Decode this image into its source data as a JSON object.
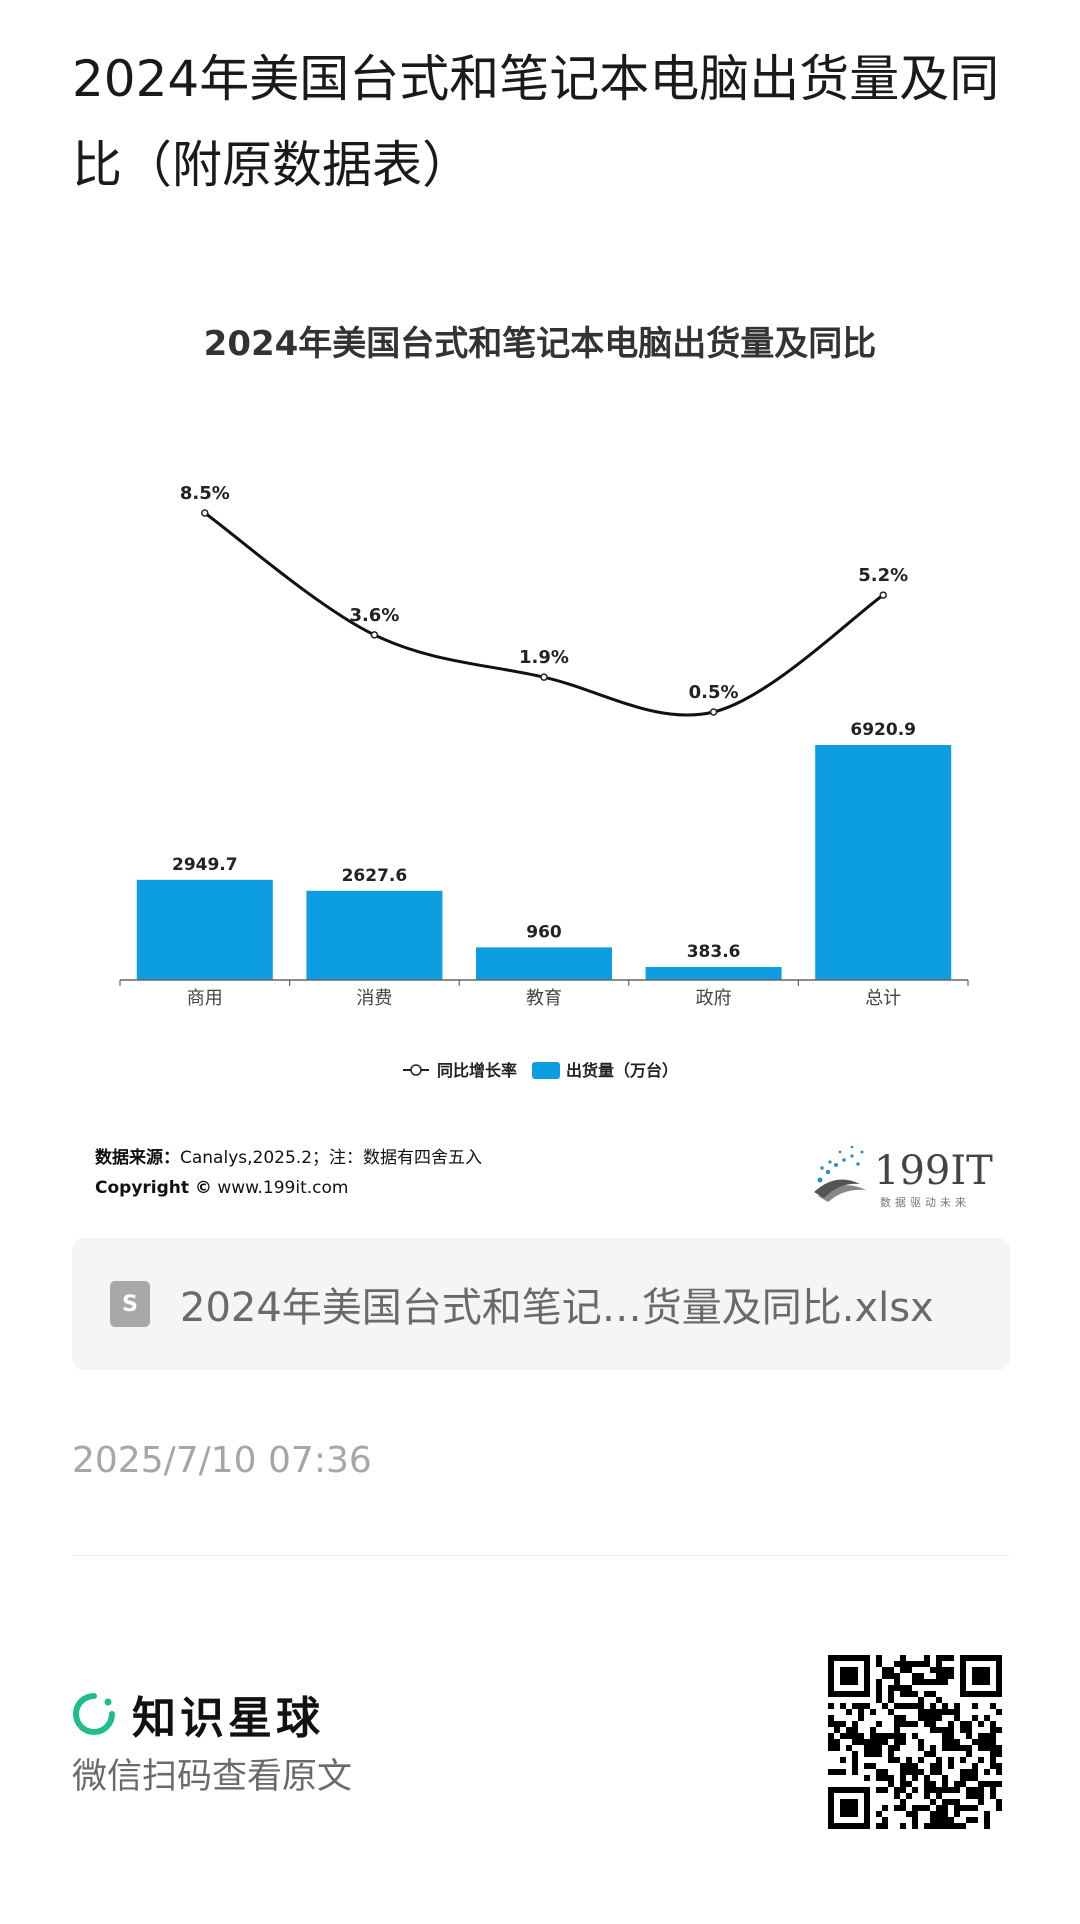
{
  "article": {
    "title": "2024年美国台式和笔记本电脑出货量及同比（附原数据表）"
  },
  "chart_data": {
    "type": "bar",
    "title": "2024年美国台式和笔记本电脑出货量及同比",
    "categories": [
      "商用",
      "消费",
      "教育",
      "政府",
      "总计"
    ],
    "series": [
      {
        "name": "出货量（万台）",
        "type": "bar",
        "values": [
          2949.7,
          2627.6,
          960,
          383.6,
          6920.9
        ],
        "labels": [
          "2949.7",
          "2627.6",
          "960",
          "383.6",
          "6920.9"
        ],
        "color": "#0c9ee0"
      },
      {
        "name": "同比增长率",
        "type": "line",
        "values": [
          8.5,
          3.6,
          1.9,
          0.5,
          5.2
        ],
        "labels": [
          "8.5%",
          "3.6%",
          "1.9%",
          "0.5%",
          "5.2%"
        ],
        "color": "#111111"
      }
    ],
    "legend": {
      "position": "bottom",
      "items": [
        "同比增长率",
        "出货量（万台）"
      ]
    },
    "grid": false
  },
  "source": {
    "label": "数据来源：",
    "text": "Canalys,2025.2；注：数据有四舍五入",
    "copyright_label": "Copyright ©",
    "copyright_site": "www.199it.com"
  },
  "logo_199it": {
    "name": "199IT",
    "tagline": "数据驱动未来"
  },
  "file": {
    "icon": "spreadsheet-icon",
    "icon_letter": "S",
    "name": "2024年美国台式和笔记…货量及同比.xlsx"
  },
  "timestamp": "2025/7/10 07:36",
  "brand": {
    "name": "知识星球",
    "scan_text": "微信扫码查看原文"
  },
  "colors": {
    "bar": "#0c9ee0",
    "line": "#111111",
    "accent_green": "#1fbc8e"
  }
}
